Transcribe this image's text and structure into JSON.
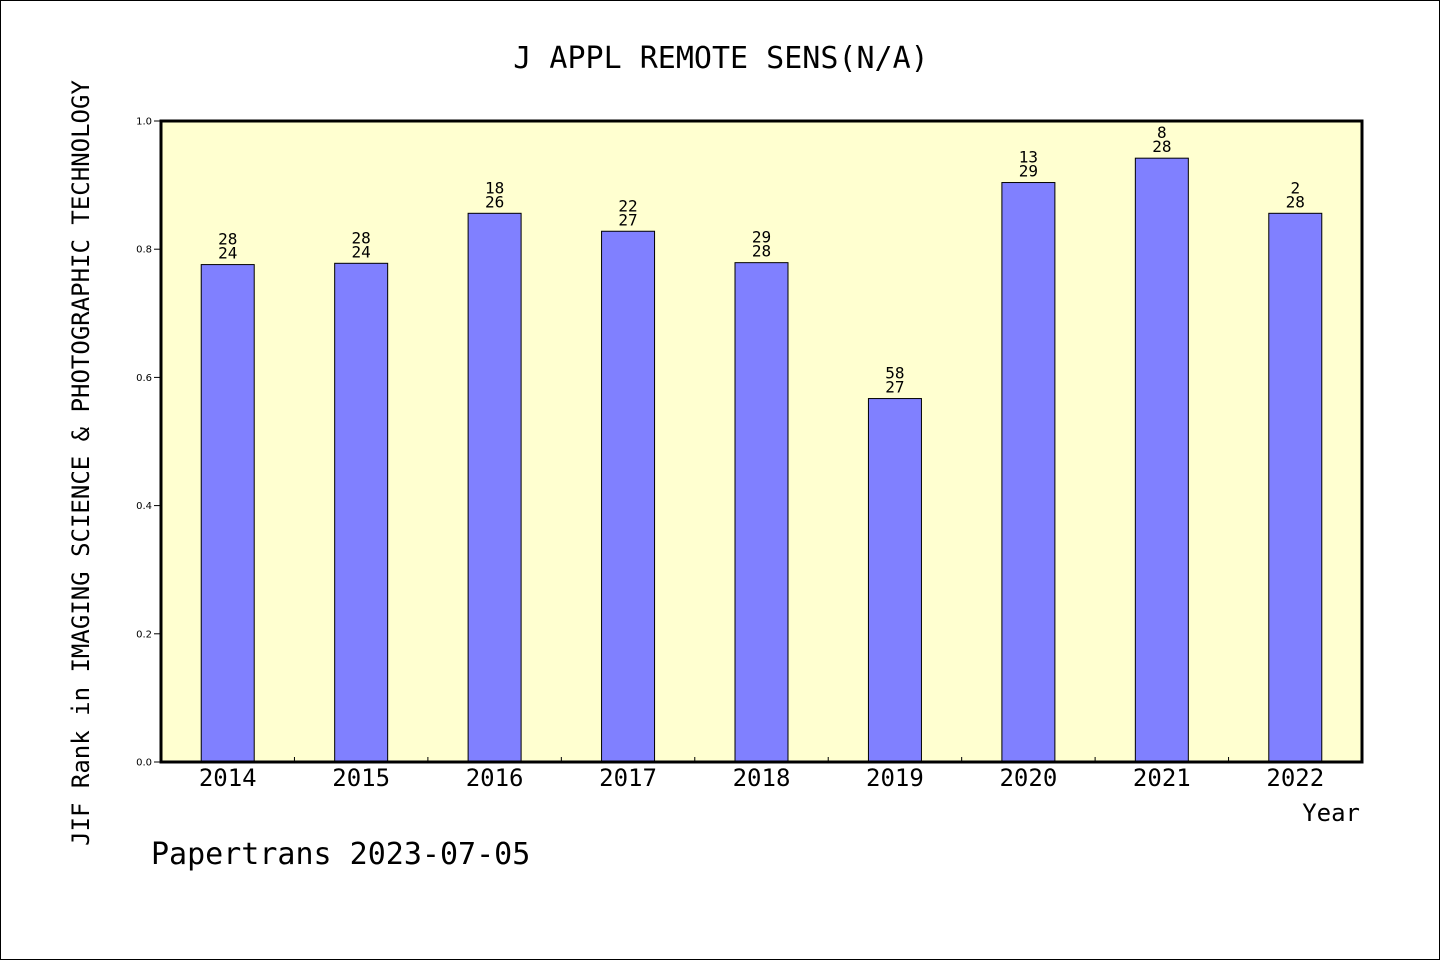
{
  "chart_data": {
    "type": "bar",
    "title": "J APPL REMOTE SENS(N/A)",
    "xlabel": "Year",
    "ylabel": "JIF Rank in IMAGING SCIENCE & PHOTOGRAPHIC TECHNOLOGY",
    "ylim": [
      0,
      1.0
    ],
    "yticks": [
      "0.0",
      "0.2",
      "0.4",
      "0.6",
      "0.8",
      "1.0"
    ],
    "categories": [
      "2014",
      "2015",
      "2016",
      "2017",
      "2018",
      "2019",
      "2020",
      "2021",
      "2022"
    ],
    "values": [
      0.776,
      0.778,
      0.856,
      0.828,
      0.779,
      0.567,
      0.904,
      0.942,
      0.856
    ],
    "rank": [
      "28",
      "28",
      "18",
      "22",
      "29",
      "58",
      "13",
      "8",
      "2"
    ],
    "total": [
      "24",
      "24",
      "26",
      "27",
      "28",
      "27",
      "29",
      "28",
      "28"
    ],
    "bar_color": "#8080ff",
    "plot_background": "#ffffd0",
    "grid": false
  },
  "footer": {
    "watermark": "Papertrans 2023-07-05"
  }
}
